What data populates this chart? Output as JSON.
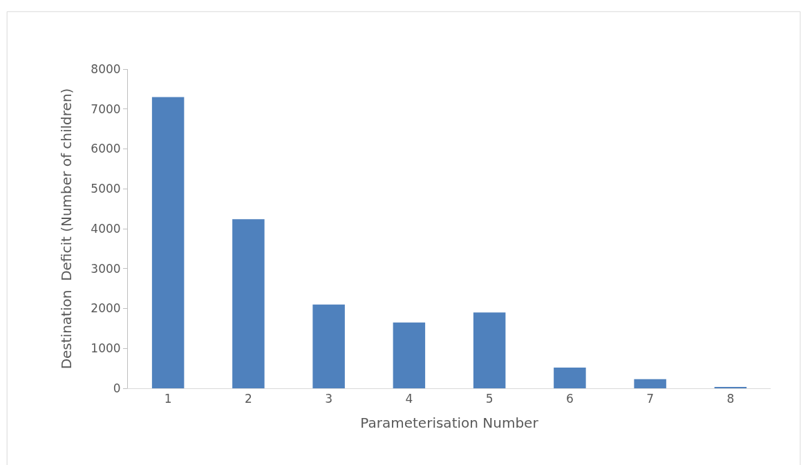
{
  "chart_data": {
    "type": "bar",
    "xlabel": "Parameterisation Number",
    "ylabel": "Destination  Deficit (Number of children)",
    "categories": [
      "1",
      "2",
      "3",
      "4",
      "5",
      "6",
      "7",
      "8"
    ],
    "values": [
      7300,
      4240,
      2100,
      1650,
      1900,
      520,
      230,
      30
    ],
    "color": "#4f81bd",
    "ylim": [
      0,
      8000
    ],
    "yticks": [
      0,
      1000,
      2000,
      3000,
      4000,
      5000,
      6000,
      7000,
      8000
    ],
    "grid": false
  }
}
